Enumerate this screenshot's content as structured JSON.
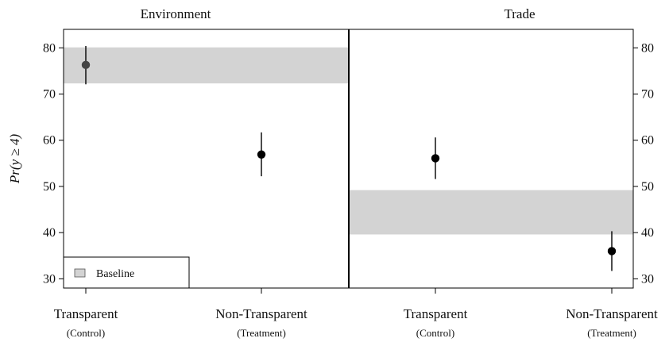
{
  "chart_data": {
    "type": "scatter",
    "ylabel": "Pr(y ≥ 4)",
    "ylim": [
      28,
      84
    ],
    "yticks": [
      30,
      40,
      50,
      60,
      70,
      80
    ],
    "legend": {
      "label": "Baseline",
      "placement": "bottom-left",
      "color": "#d3d3d3"
    },
    "colors": {
      "point": "#000000",
      "first_point": "#444444",
      "band": "#d3d3d3",
      "line": "#000000"
    },
    "panels": [
      {
        "title": "Environment",
        "baseline_band": [
          72.3,
          80.1
        ],
        "categories": [
          {
            "label": "Transparent",
            "sub": "(Control)"
          },
          {
            "label": "Non-Transparent",
            "sub": "(Treatment)"
          }
        ],
        "points": [
          {
            "estimate": 76.3,
            "lower": 72.1,
            "upper": 80.4
          },
          {
            "estimate": 56.9,
            "lower": 52.2,
            "upper": 61.7
          }
        ]
      },
      {
        "title": "Trade",
        "baseline_band": [
          39.6,
          49.2
        ],
        "categories": [
          {
            "label": "Transparent",
            "sub": "(Control)"
          },
          {
            "label": "Non-Transparent",
            "sub": "(Treatment)"
          }
        ],
        "points": [
          {
            "estimate": 56.1,
            "lower": 51.6,
            "upper": 60.6
          },
          {
            "estimate": 36.0,
            "lower": 31.7,
            "upper": 40.3
          }
        ]
      }
    ]
  }
}
